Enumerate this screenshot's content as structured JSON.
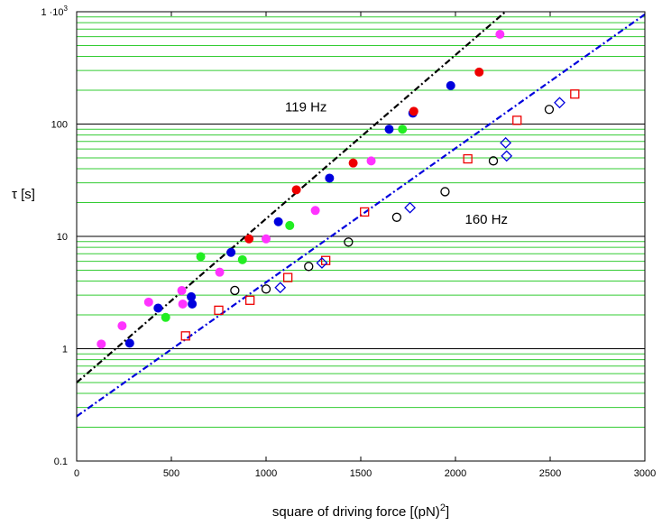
{
  "chart_data": {
    "type": "scatter",
    "xlabel": "square of driving force [(pN)",
    "xlabel_sup": "2",
    "xlabel_end": "]",
    "ylabel": "τ  [s]",
    "xlim": [
      0,
      3000
    ],
    "ylim": [
      0.1,
      1000
    ],
    "yscale": "log",
    "grid": true,
    "x_ticks": [
      0,
      500,
      1000,
      1500,
      2000,
      2500,
      3000
    ],
    "y_ticks": [
      {
        "value": 0.1,
        "label": "0.1"
      },
      {
        "value": 1,
        "label": "1"
      },
      {
        "value": 10,
        "label": "10"
      },
      {
        "value": 100,
        "label": "100"
      },
      {
        "value": 1000,
        "label": "1 ·10",
        "sup": "3"
      }
    ],
    "annotations": [
      {
        "text": "119 Hz",
        "x": 1100,
        "y": 130
      },
      {
        "text": "160 Hz",
        "x": 2050,
        "y": 13
      }
    ],
    "colors": {
      "grid_minor": "#33cc33",
      "grid_major": "#000000",
      "magenta": "#ff33ff",
      "blue": "#0000dd",
      "red": "#ee0000",
      "green": "#22ee22",
      "fit_119": "#000000",
      "fit_160": "#0000dd",
      "open_circle": "#000000",
      "open_square": "#ee0000",
      "open_diamond": "#0000dd"
    },
    "series": [
      {
        "marker": "filled-circle",
        "color": "magenta",
        "points": [
          [
            130,
            1.1
          ],
          [
            240,
            1.6
          ],
          [
            380,
            2.6
          ],
          [
            555,
            3.3
          ],
          [
            560,
            2.5
          ],
          [
            755,
            4.8
          ],
          [
            1000,
            9.5
          ],
          [
            1260,
            17
          ],
          [
            1555,
            47
          ],
          [
            2235,
            630
          ]
        ]
      },
      {
        "marker": "filled-circle",
        "color": "blue",
        "points": [
          [
            280,
            1.12
          ],
          [
            430,
            2.3
          ],
          [
            605,
            2.9
          ],
          [
            610,
            2.5
          ],
          [
            815,
            7.2
          ],
          [
            1065,
            13.5
          ],
          [
            1335,
            33
          ],
          [
            1650,
            90
          ],
          [
            1775,
            125
          ],
          [
            1975,
            220
          ]
        ]
      },
      {
        "marker": "filled-circle",
        "color": "red",
        "points": [
          [
            910,
            9.5
          ],
          [
            1160,
            26
          ],
          [
            1460,
            45
          ],
          [
            1780,
            130
          ],
          [
            2125,
            290
          ]
        ]
      },
      {
        "marker": "filled-circle",
        "color": "green",
        "points": [
          [
            470,
            1.9
          ],
          [
            655,
            6.6
          ],
          [
            875,
            6.2
          ],
          [
            1125,
            12.5
          ],
          [
            1720,
            90
          ]
        ]
      },
      {
        "marker": "fit-line",
        "color": "fit_119",
        "intercept": 0.5,
        "slope_log10_per_unit": 0.001458
      },
      {
        "marker": "fit-line",
        "color": "fit_160",
        "intercept": 0.25,
        "slope_log10_per_unit": 0.001193
      },
      {
        "marker": "open-circle",
        "color": "open_circle",
        "points": [
          [
            835,
            3.3
          ],
          [
            1000,
            3.4
          ],
          [
            1225,
            5.4
          ],
          [
            1435,
            8.9
          ],
          [
            1690,
            14.8
          ],
          [
            1945,
            25
          ],
          [
            2200,
            47
          ],
          [
            2495,
            135
          ]
        ]
      },
      {
        "marker": "open-square",
        "color": "open_square",
        "points": [
          [
            575,
            1.3
          ],
          [
            750,
            2.2
          ],
          [
            915,
            2.7
          ],
          [
            1115,
            4.3
          ],
          [
            1315,
            6.1
          ],
          [
            1520,
            16.5
          ],
          [
            2065,
            49
          ],
          [
            2325,
            108
          ],
          [
            2630,
            185
          ]
        ]
      },
      {
        "marker": "open-diamond",
        "color": "open_diamond",
        "points": [
          [
            1075,
            3.5
          ],
          [
            1295,
            5.8
          ],
          [
            1760,
            18
          ],
          [
            2265,
            68
          ],
          [
            2270,
            52
          ],
          [
            2550,
            155
          ]
        ]
      }
    ]
  }
}
